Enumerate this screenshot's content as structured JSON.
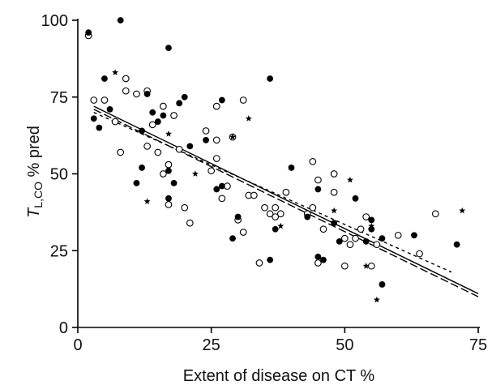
{
  "chart_data": {
    "type": "scatter",
    "xlabel": "Extent of disease on CT  %",
    "ylabel_italic": "T",
    "ylabel_sub": "L,CO",
    "ylabel_rest": " % pred",
    "xlim": [
      0,
      75
    ],
    "ylim": [
      0,
      100
    ],
    "xticks": [
      0,
      25,
      50,
      75
    ],
    "yticks": [
      0,
      25,
      50,
      75,
      100
    ],
    "grid": false,
    "series": [
      {
        "marker": "open-circle",
        "points": [
          [
            2,
            95
          ],
          [
            3,
            74
          ],
          [
            5,
            74
          ],
          [
            7,
            67
          ],
          [
            8,
            57
          ],
          [
            9,
            77
          ],
          [
            9,
            81
          ],
          [
            11,
            76
          ],
          [
            13,
            77
          ],
          [
            13,
            59
          ],
          [
            14,
            66
          ],
          [
            15,
            57
          ],
          [
            16,
            72
          ],
          [
            16,
            50
          ],
          [
            17,
            40
          ],
          [
            17,
            53
          ],
          [
            18,
            69
          ],
          [
            19,
            58
          ],
          [
            20,
            39
          ],
          [
            21,
            34
          ],
          [
            24,
            64
          ],
          [
            25,
            51
          ],
          [
            26,
            72
          ],
          [
            26,
            61
          ],
          [
            27,
            42
          ],
          [
            26,
            55
          ],
          [
            28,
            46
          ],
          [
            29,
            62
          ],
          [
            30,
            35
          ],
          [
            31,
            31
          ],
          [
            31,
            74
          ],
          [
            32,
            43
          ],
          [
            33,
            43
          ],
          [
            34,
            21
          ],
          [
            35,
            39
          ],
          [
            36,
            37
          ],
          [
            37,
            36
          ],
          [
            37,
            39
          ],
          [
            38,
            37
          ],
          [
            39,
            44
          ],
          [
            43,
            37
          ],
          [
            44,
            54
          ],
          [
            44,
            39
          ],
          [
            45,
            21
          ],
          [
            45,
            48
          ],
          [
            46,
            32
          ],
          [
            48,
            44
          ],
          [
            48,
            50
          ],
          [
            50,
            29
          ],
          [
            50,
            20
          ],
          [
            51,
            27
          ],
          [
            52,
            29
          ],
          [
            53,
            32
          ],
          [
            54,
            36
          ],
          [
            55,
            20
          ],
          [
            56,
            27
          ],
          [
            60,
            30
          ],
          [
            64,
            24
          ],
          [
            67,
            37
          ]
        ]
      },
      {
        "marker": "filled-circle",
        "points": [
          [
            2,
            96
          ],
          [
            3,
            68
          ],
          [
            4,
            65
          ],
          [
            5,
            81
          ],
          [
            6,
            71
          ],
          [
            8,
            100
          ],
          [
            11,
            47
          ],
          [
            12,
            64
          ],
          [
            12,
            52
          ],
          [
            13,
            76
          ],
          [
            14,
            70
          ],
          [
            15,
            67
          ],
          [
            16,
            69
          ],
          [
            17,
            91
          ],
          [
            17,
            51
          ],
          [
            17,
            42
          ],
          [
            18,
            47
          ],
          [
            19,
            73
          ],
          [
            20,
            75
          ],
          [
            21,
            59
          ],
          [
            24,
            61
          ],
          [
            26,
            45
          ],
          [
            27,
            46
          ],
          [
            27,
            74
          ],
          [
            29,
            29
          ],
          [
            30,
            36
          ],
          [
            36,
            81
          ],
          [
            36,
            22
          ],
          [
            37,
            32
          ],
          [
            40,
            52
          ],
          [
            43,
            36
          ],
          [
            45,
            45
          ],
          [
            45,
            23
          ],
          [
            46,
            22
          ],
          [
            48,
            34
          ],
          [
            49,
            28
          ],
          [
            52,
            42
          ],
          [
            54,
            28
          ],
          [
            55,
            32
          ],
          [
            55,
            35
          ],
          [
            57,
            14
          ],
          [
            57,
            29
          ],
          [
            63,
            30
          ],
          [
            71,
            27
          ]
        ]
      },
      {
        "marker": "star",
        "points": [
          [
            7,
            83
          ],
          [
            13,
            41
          ],
          [
            17,
            63
          ],
          [
            22,
            50
          ],
          [
            29,
            62
          ],
          [
            32,
            68
          ],
          [
            38,
            33
          ],
          [
            48,
            38
          ],
          [
            51,
            48
          ],
          [
            54,
            20
          ],
          [
            55,
            33
          ],
          [
            56,
            9
          ],
          [
            72,
            38
          ]
        ]
      }
    ],
    "fit_lines": [
      {
        "style": "solid",
        "x": [
          3,
          75
        ],
        "y": [
          72,
          11
        ]
      },
      {
        "style": "long-dash",
        "x": [
          3,
          75
        ],
        "y": [
          71,
          10
        ]
      },
      {
        "style": "short-dash",
        "x": [
          3,
          70
        ],
        "y": [
          70,
          18
        ]
      }
    ]
  }
}
